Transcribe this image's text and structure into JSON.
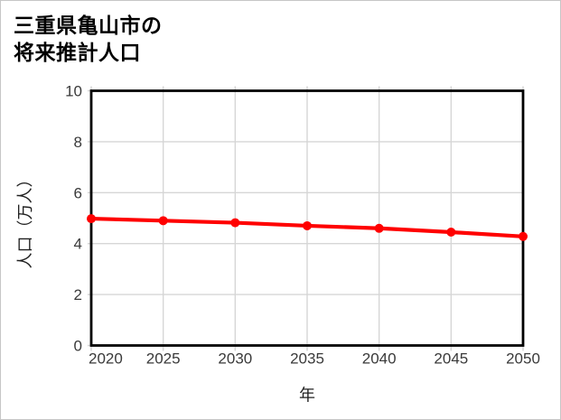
{
  "figure": {
    "title_line1": "三重県亀山市の",
    "title_line2": "将来推計人口"
  },
  "chart_data": {
    "type": "line",
    "title": "三重県亀山市の将来推計人口",
    "xlabel": "年",
    "ylabel": "人口（万人）",
    "x": [
      2020,
      2025,
      2030,
      2035,
      2040,
      2045,
      2050
    ],
    "values": [
      4.98,
      4.9,
      4.82,
      4.7,
      4.6,
      4.45,
      4.28
    ],
    "xlim": [
      2020,
      2050
    ],
    "ylim": [
      0,
      10
    ],
    "xticks": [
      2020,
      2025,
      2030,
      2035,
      2040,
      2045,
      2050
    ],
    "yticks": [
      0,
      2,
      4,
      6,
      8,
      10
    ],
    "grid": true,
    "legend": "none",
    "marker": "circle"
  },
  "colors": {
    "line": "#ff0000",
    "marker": "#ff0000",
    "grid": "#d6d6d6",
    "plot_border": "#000000",
    "tick_label": "#3a3a3a",
    "axis_label": "#1f1f1f",
    "title": "#000000",
    "frame_border": "#c6c6c6",
    "background": "#ffffff"
  }
}
